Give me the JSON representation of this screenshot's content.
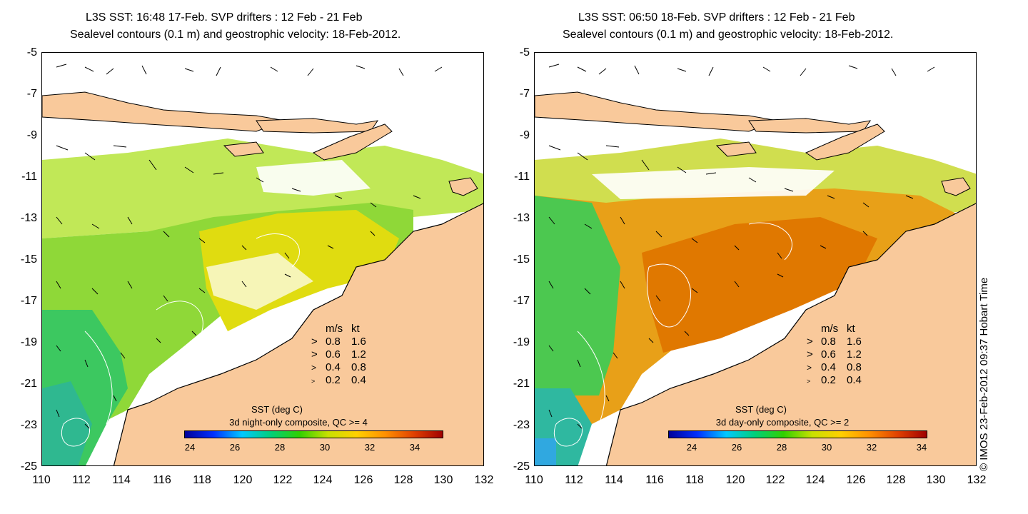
{
  "panels": [
    {
      "title_line1": "L3S SST: 16:48 17-Feb. SVP drifters : 12 Feb - 21 Feb",
      "title_line2": "Sealevel contours (0.1 m) and geostrophic velocity: 18-Feb-2012.",
      "colorbar_title": "SST (deg C)",
      "colorbar_subtitle": "3d night-only composite, QC >= 4"
    },
    {
      "title_line1": "L3S SST: 06:50 18-Feb. SVP drifters : 12 Feb - 21 Feb",
      "title_line2": "Sealevel contours (0.1 m) and geostrophic velocity: 18-Feb-2012.",
      "colorbar_title": "SST (deg C)",
      "colorbar_subtitle": "3d day-only composite, QC >= 2"
    }
  ],
  "y_ticks": [
    "-5",
    "-7",
    "-9",
    "-11",
    "-13",
    "-15",
    "-17",
    "-19",
    "-21",
    "-23",
    "-25"
  ],
  "x_ticks": [
    "110",
    "112",
    "114",
    "116",
    "118",
    "120",
    "122",
    "124",
    "126",
    "128",
    "130",
    "132"
  ],
  "colorbar_ticks": [
    "24",
    "26",
    "28",
    "30",
    "32",
    "34"
  ],
  "velocity_legend": {
    "header_ms": "m/s",
    "header_kt": "kt",
    "rows": [
      {
        "ms": "0.8",
        "kt": "1.6"
      },
      {
        "ms": "0.6",
        "kt": "1.2"
      },
      {
        "ms": "0.4",
        "kt": "0.8"
      },
      {
        "ms": "0.2",
        "kt": "0.4"
      }
    ]
  },
  "copyright": "© IMOS 23-Feb-2012 09:37 Hobart Time",
  "colors": {
    "land": "#f9c99b",
    "sst_green": "#7ad63a",
    "sst_yellow": "#e8e000",
    "sst_orange": "#f0a000",
    "contour": "#ffffff"
  }
}
